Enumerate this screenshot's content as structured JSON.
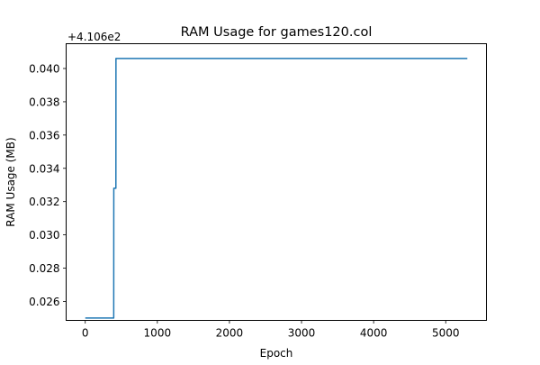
{
  "chart_data": {
    "type": "line",
    "title": "RAM Usage for games120.col",
    "xlabel": "Epoch",
    "ylabel": "RAM Usage (MB)",
    "y_offset_text": "+4.106e2",
    "y_offset": 410.6,
    "xlim": [
      -265,
      5565
    ],
    "ylim": [
      0.02486,
      0.04149
    ],
    "xticks": [
      0,
      1000,
      2000,
      3000,
      4000,
      5000
    ],
    "yticks": [
      0.026,
      0.028,
      0.03,
      0.032,
      0.034,
      0.036,
      0.038,
      0.04
    ],
    "ytick_labels": [
      "0.026",
      "0.028",
      "0.030",
      "0.032",
      "0.034",
      "0.036",
      "0.038",
      "0.040"
    ],
    "grid": false,
    "series": [
      {
        "color": "#1f77b4",
        "x": [
          0,
          395,
          396,
          425,
          426,
          5300
        ],
        "y": [
          0.025,
          0.025,
          0.0328,
          0.0328,
          0.0406,
          0.0406
        ]
      }
    ]
  }
}
